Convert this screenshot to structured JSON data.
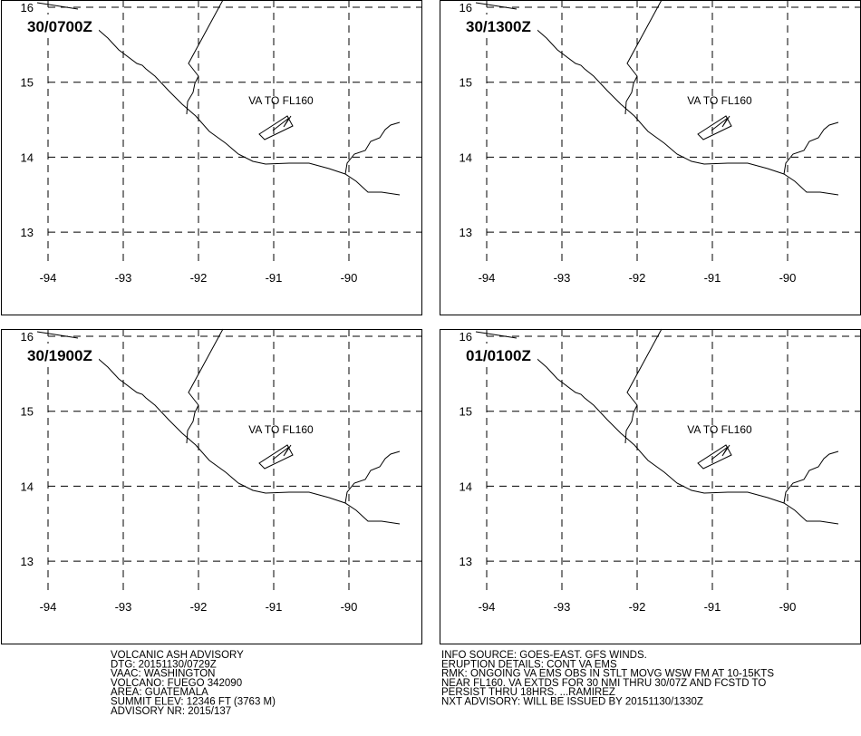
{
  "panels": [
    {
      "time": "30/0700Z",
      "annotation": "VA TO FL160"
    },
    {
      "time": "30/1300Z",
      "annotation": "VA TO FL160"
    },
    {
      "time": "30/1900Z",
      "annotation": "VA TO FL160"
    },
    {
      "time": "01/0100Z",
      "annotation": "VA TO FL160"
    }
  ],
  "grid": {
    "lats": [
      16,
      15,
      14,
      13
    ],
    "lons": [
      -94,
      -93,
      -92,
      -91,
      -90
    ]
  },
  "advisory": {
    "left": [
      "VOLCANIC ASH ADVISORY",
      "DTG: 20151130/0729Z",
      "VAAC: WASHINGTON",
      "VOLCANO: FUEGO 342090",
      "AREA: GUATEMALA",
      "SUMMIT ELEV: 12346 FT (3763 M)",
      "ADVISORY NR: 2015/137"
    ],
    "right": [
      "INFO SOURCE: GOES-EAST. GFS WINDS.",
      "ERUPTION DETAILS: CONT VA EMS",
      "RMK: ONGOING VA EMS OBS IN STLT MOVG WSW FM AT 10-15KTS",
      "NEAR FL160. VA EXTDS FOR 30 NMI THRU 30/07Z AND FCSTD TO",
      "PERSIST THRU 18HRS. ...RAMIREZ",
      "NXT ADVISORY: WILL BE ISSUED BY 20151130/1330Z"
    ]
  }
}
